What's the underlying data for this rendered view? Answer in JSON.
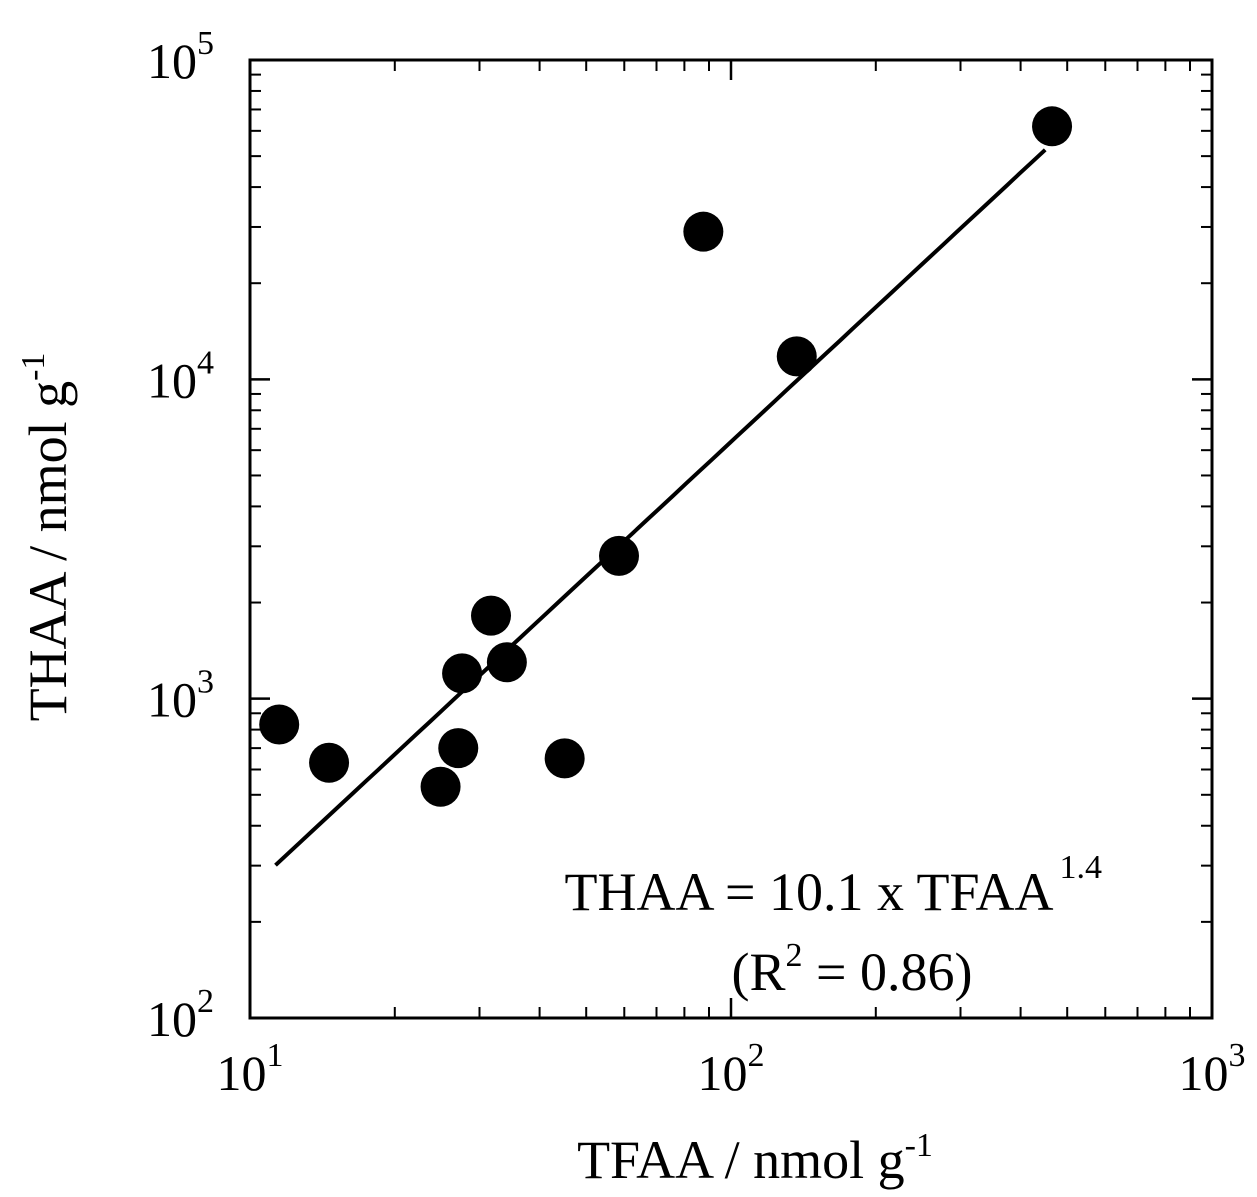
{
  "chart_data": {
    "type": "scatter",
    "title": "",
    "xlabel": "TFAA / nmol g",
    "xlabel_sup": "-1",
    "ylabel": "THAA / nmol g",
    "ylabel_sup": "-1",
    "x_scale": "log",
    "y_scale": "log",
    "xlim": [
      10,
      1000
    ],
    "ylim": [
      100,
      100000
    ],
    "grid": false,
    "legend": "none",
    "x_ticks": [
      {
        "base": "10",
        "exp": "1",
        "value": 10
      },
      {
        "base": "10",
        "exp": "2",
        "value": 100
      },
      {
        "base": "10",
        "exp": "3",
        "value": 1000
      }
    ],
    "y_ticks": [
      {
        "base": "10",
        "exp": "2",
        "value": 100
      },
      {
        "base": "10",
        "exp": "3",
        "value": 1000
      },
      {
        "base": "10",
        "exp": "4",
        "value": 10000
      },
      {
        "base": "10",
        "exp": "5",
        "value": 100000
      }
    ],
    "points": [
      {
        "x": 11.5,
        "y": 830
      },
      {
        "x": 14.6,
        "y": 630
      },
      {
        "x": 24.9,
        "y": 530
      },
      {
        "x": 27.1,
        "y": 700
      },
      {
        "x": 27.6,
        "y": 1200
      },
      {
        "x": 31.7,
        "y": 1820
      },
      {
        "x": 34.2,
        "y": 1300
      },
      {
        "x": 45.1,
        "y": 650
      },
      {
        "x": 58.5,
        "y": 2800
      },
      {
        "x": 87.6,
        "y": 29000
      },
      {
        "x": 137,
        "y": 11800
      },
      {
        "x": 465,
        "y": 62000
      }
    ],
    "fit": {
      "coefficient": 10.1,
      "exponent": 1.4,
      "x_range": [
        11.3,
        450
      ]
    },
    "annotation": {
      "line1_text": "THAA = 10.1 x TFAA",
      "line1_sup": "1.4",
      "line2_prefix": "(R",
      "line2_sup": "2",
      "line2_suffix": " = 0.86)"
    },
    "colors": {
      "marker": "#000000",
      "line": "#000000",
      "axis": "#000000"
    }
  }
}
